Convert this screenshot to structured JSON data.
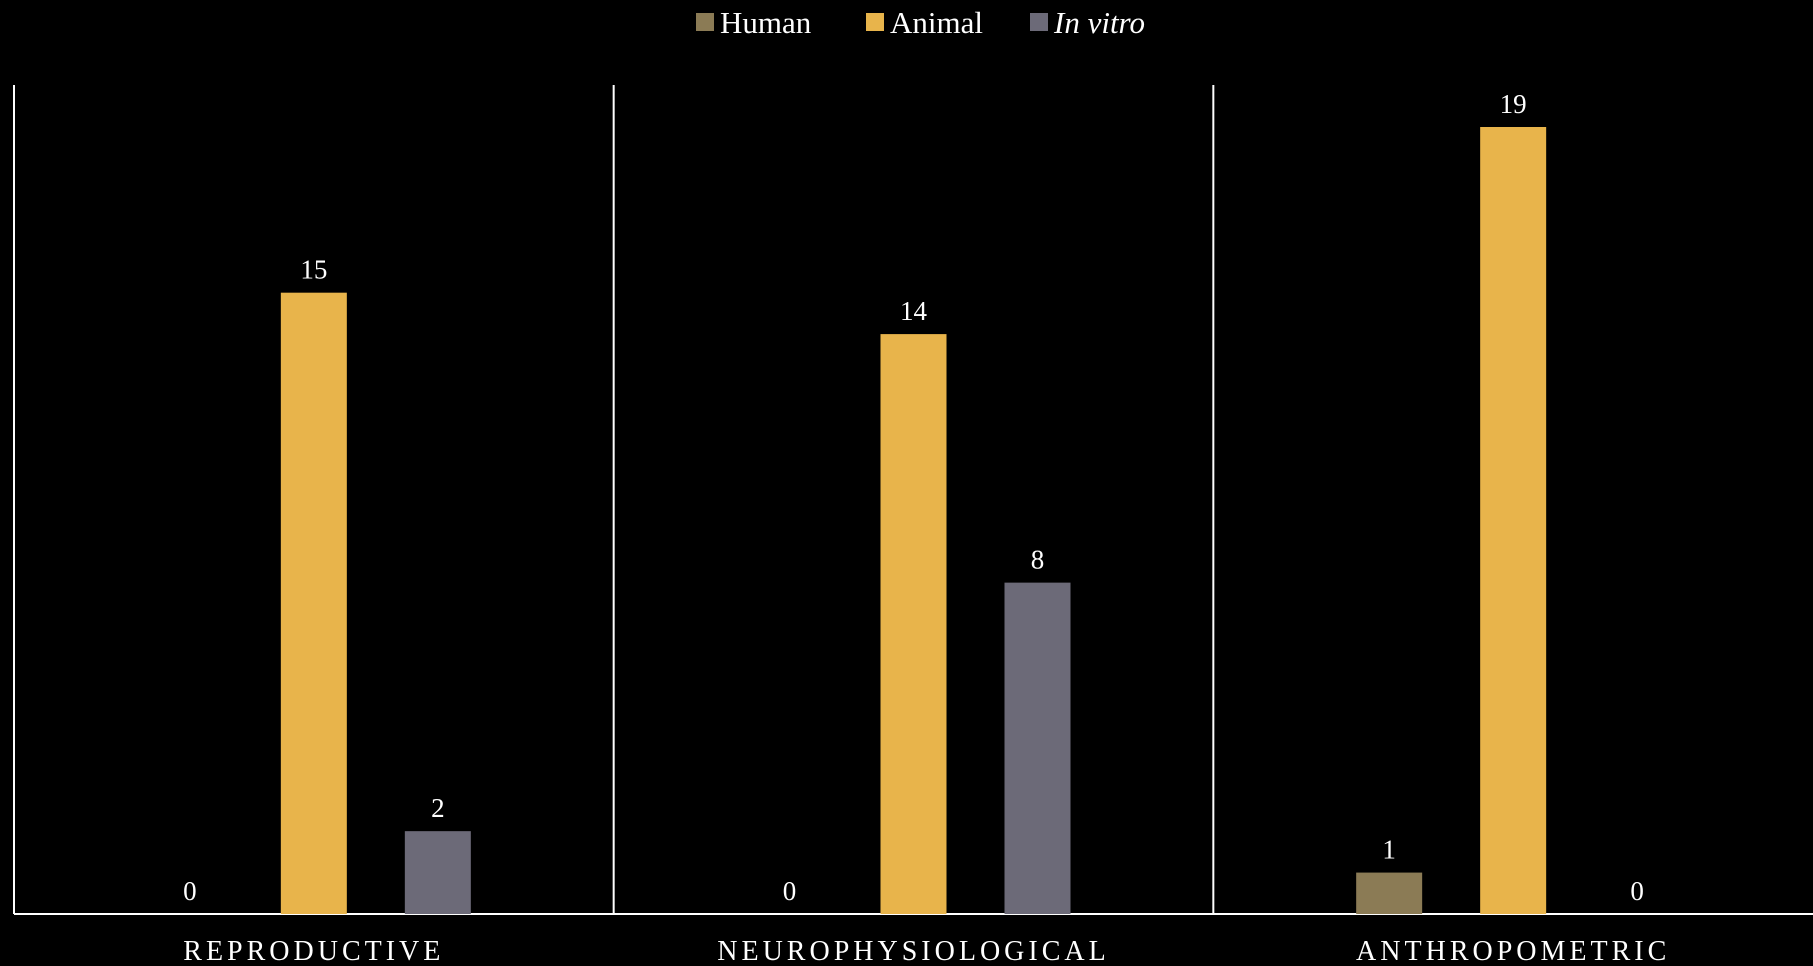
{
  "chart_data": {
    "type": "bar",
    "categories": [
      "REPRODUCTIVE",
      "NEUROPHYSIOLOGICAL",
      "ANTHROPOMETRIC"
    ],
    "series": [
      {
        "name": "Human",
        "values": [
          0,
          0,
          1
        ],
        "color": "#8b7b55",
        "italic": false
      },
      {
        "name": "Animal",
        "values": [
          15,
          14,
          19
        ],
        "color": "#e8b44b",
        "italic": false
      },
      {
        "name": "In vitro",
        "values": [
          2,
          8,
          0
        ],
        "color": "#6c6a78",
        "italic": true
      }
    ],
    "title": "",
    "xlabel": "",
    "ylabel": "",
    "ylim": [
      0,
      20
    ],
    "grid": false,
    "legend": "top-center",
    "data_labels": true,
    "category_separators": true,
    "axis_color": "#ffffff",
    "text_color": "#ffffff",
    "background": "#000000"
  }
}
